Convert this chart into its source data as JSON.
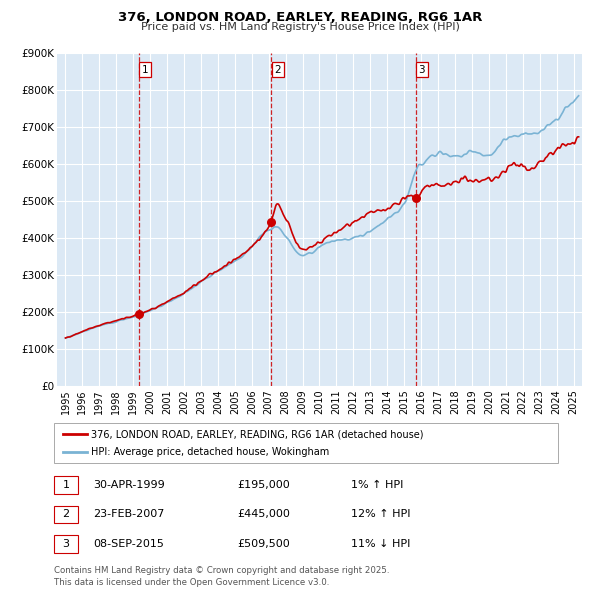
{
  "title": "376, LONDON ROAD, EARLEY, READING, RG6 1AR",
  "subtitle": "Price paid vs. HM Land Registry's House Price Index (HPI)",
  "bg_color": "#ffffff",
  "plot_bg_color": "#dce9f5",
  "grid_color": "#ffffff",
  "red_line_color": "#cc0000",
  "blue_line_color": "#7ab3d4",
  "sale_marker_color": "#cc0000",
  "ylim": [
    0,
    900000
  ],
  "yticks": [
    0,
    100000,
    200000,
    300000,
    400000,
    500000,
    600000,
    700000,
    800000,
    900000
  ],
  "ytick_labels": [
    "£0",
    "£100K",
    "£200K",
    "£300K",
    "£400K",
    "£500K",
    "£600K",
    "£700K",
    "£800K",
    "£900K"
  ],
  "xlim_start": 1994.5,
  "xlim_end": 2025.5,
  "xtick_years": [
    1995,
    1996,
    1997,
    1998,
    1999,
    2000,
    2001,
    2002,
    2003,
    2004,
    2005,
    2006,
    2007,
    2008,
    2009,
    2010,
    2011,
    2012,
    2013,
    2014,
    2015,
    2016,
    2017,
    2018,
    2019,
    2020,
    2021,
    2022,
    2023,
    2024,
    2025
  ],
  "sale1_x": 1999.33,
  "sale1_y": 195000,
  "sale1_label": "1",
  "sale1_date": "30-APR-1999",
  "sale1_price": "£195,000",
  "sale1_hpi": "1% ↑ HPI",
  "sale2_x": 2007.15,
  "sale2_y": 445000,
  "sale2_label": "2",
  "sale2_date": "23-FEB-2007",
  "sale2_price": "£445,000",
  "sale2_hpi": "12% ↑ HPI",
  "sale3_x": 2015.67,
  "sale3_y": 509500,
  "sale3_label": "3",
  "sale3_date": "08-SEP-2015",
  "sale3_price": "£509,500",
  "sale3_hpi": "11% ↓ HPI",
  "legend_red_label": "376, LONDON ROAD, EARLEY, READING, RG6 1AR (detached house)",
  "legend_blue_label": "HPI: Average price, detached house, Wokingham",
  "footnote": "Contains HM Land Registry data © Crown copyright and database right 2025.\nThis data is licensed under the Open Government Licence v3.0."
}
